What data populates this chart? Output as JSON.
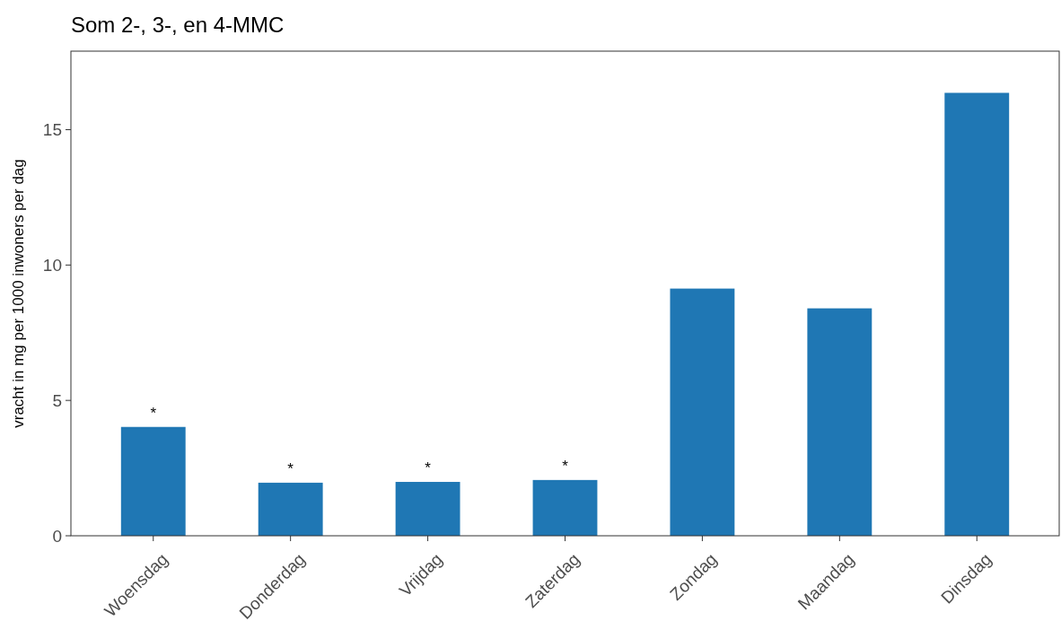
{
  "chart_data": {
    "type": "bar",
    "title": "Som 2-, 3-, en 4-MMC",
    "ylabel": "vracht in mg per 1000 inwoners per dag",
    "categories": [
      "Woensdag",
      "Donderdag",
      "Vrijdag",
      "Zaterdag",
      "Zondag",
      "Maandag",
      "Dinsdag"
    ],
    "values": [
      4.02,
      1.96,
      1.99,
      2.06,
      9.13,
      8.4,
      16.36
    ],
    "color": "#1f77b4",
    "value_labels": [
      "*",
      "*",
      "*",
      "*",
      null,
      null,
      null
    ],
    "ylim": [
      0,
      17.9
    ],
    "yticks": [
      0,
      5,
      10,
      15
    ],
    "grid": false
  }
}
